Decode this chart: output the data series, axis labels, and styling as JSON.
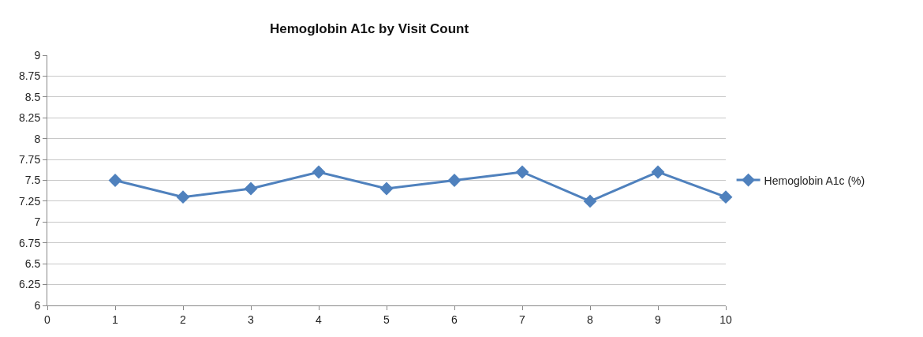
{
  "chart_data": {
    "type": "line",
    "title": "Hemoglobin A1c by Visit Count",
    "x": [
      1,
      2,
      3,
      4,
      5,
      6,
      7,
      8,
      9,
      10
    ],
    "series": [
      {
        "name": "Hemoglobin A1c (%)",
        "color": "#4f81bd",
        "values": [
          7.5,
          7.3,
          7.4,
          7.6,
          7.4,
          7.5,
          7.6,
          7.25,
          7.6,
          7.3
        ]
      }
    ],
    "xlim": [
      0,
      10
    ],
    "xticks": [
      0,
      1,
      2,
      3,
      4,
      5,
      6,
      7,
      8,
      9,
      10
    ],
    "ylim": [
      6,
      9
    ],
    "yticks": [
      6,
      6.25,
      6.5,
      6.75,
      7,
      7.25,
      7.5,
      7.75,
      8,
      8.25,
      8.5,
      8.75,
      9
    ],
    "grid": "y",
    "legend": "right",
    "marker": "diamond",
    "line_style": "solid"
  }
}
